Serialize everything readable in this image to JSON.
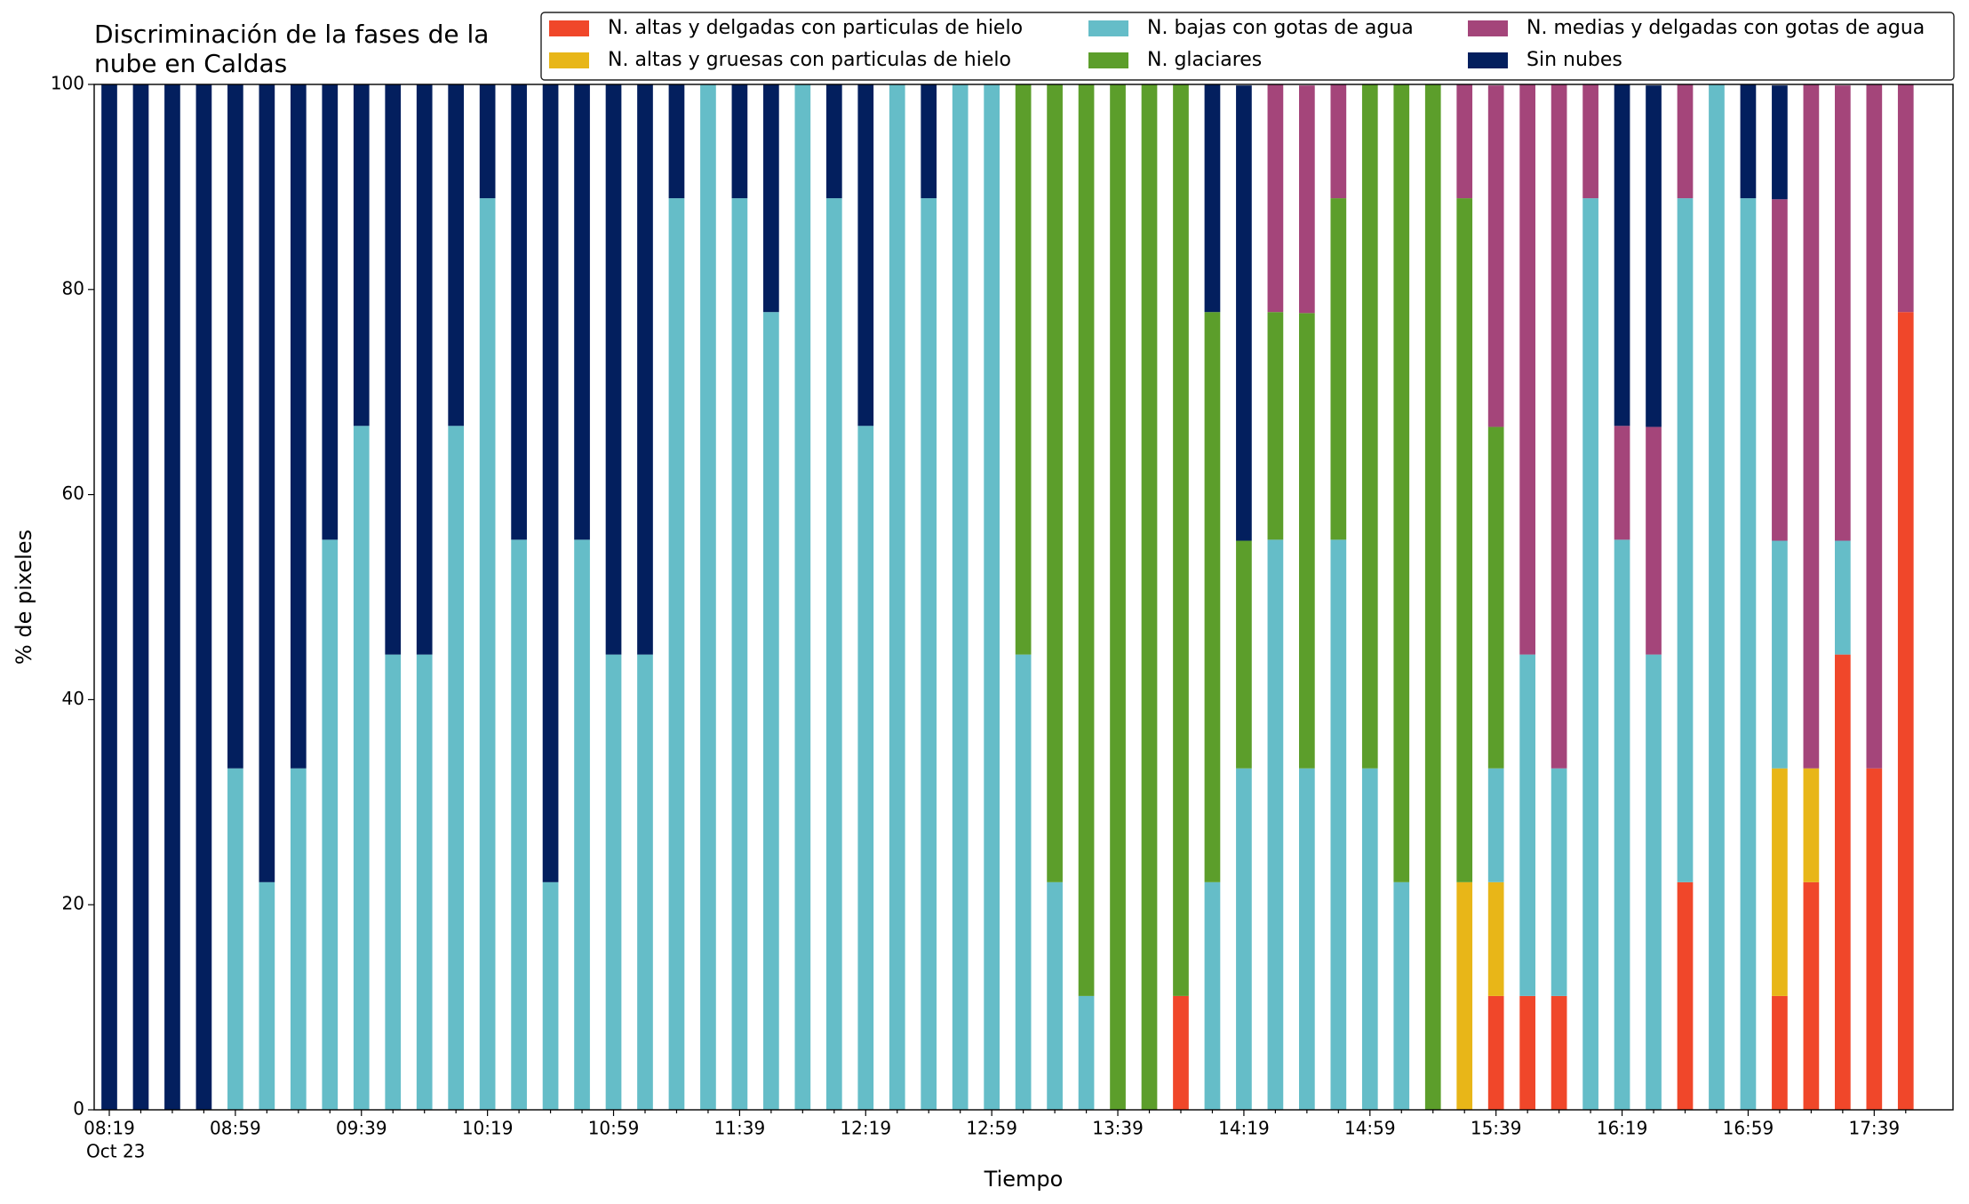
{
  "chart_data": {
    "type": "stacked_bar",
    "title": "Discriminación de la fases de la nube en Caldas",
    "xlabel": "Tiempo",
    "ylabel": "% de pixeles",
    "x_date_label": "Oct 23",
    "categories": [
      "08:19",
      null,
      null,
      null,
      "08:59",
      null,
      null,
      null,
      "09:39",
      null,
      null,
      null,
      "10:19",
      null,
      null,
      null,
      "10:59",
      null,
      null,
      null,
      "11:39",
      null,
      null,
      null,
      "12:19",
      null,
      null,
      null,
      "12:59",
      null,
      null,
      null,
      "13:39",
      null,
      null,
      null,
      "14:19",
      null,
      null,
      null,
      "14:59",
      null,
      null,
      null,
      "15:39",
      null,
      null,
      null,
      "16:19",
      null,
      null,
      null,
      "16:59",
      null,
      null,
      null,
      "17:39",
      null
    ],
    "ylim": [
      0,
      100
    ],
    "yticks": [
      0,
      20,
      40,
      60,
      80,
      100
    ],
    "legend": "upper right",
    "stacked": true,
    "series": [
      {
        "name": "N. altas y delgadas con particulas de hielo",
        "color": "#f0472a",
        "values": [
          0,
          0,
          0,
          0,
          0,
          0,
          0,
          0,
          0,
          0,
          0,
          0,
          0,
          0,
          0,
          0,
          0,
          0,
          0,
          0,
          0,
          0,
          0,
          0,
          0,
          0,
          0,
          0,
          0,
          0,
          0,
          0,
          0,
          0,
          11.1,
          0,
          0,
          0,
          0,
          0,
          0,
          0,
          0,
          0,
          11.1,
          11.1,
          11.1,
          0,
          0,
          0,
          22.2,
          0,
          0,
          11.1,
          22.2,
          44.4,
          33.3,
          77.8
        ]
      },
      {
        "name": "N. altas y gruesas con particulas de hielo",
        "color": "#e8b618",
        "values": [
          0,
          0,
          0,
          0,
          0,
          0,
          0,
          0,
          0,
          0,
          0,
          0,
          0,
          0,
          0,
          0,
          0,
          0,
          0,
          0,
          0,
          0,
          0,
          0,
          0,
          0,
          0,
          0,
          0,
          0,
          0,
          0,
          0,
          0,
          0,
          0,
          0,
          0,
          0,
          0,
          0,
          0,
          0,
          22.2,
          11.1,
          0,
          0,
          0,
          0,
          0,
          0,
          0,
          0,
          22.2,
          11.1,
          0,
          0,
          0
        ]
      },
      {
        "name": "N. bajas con gotas de agua",
        "color": "#65bdc8",
        "values": [
          0,
          0,
          0,
          0,
          33.3,
          22.2,
          33.3,
          55.6,
          66.7,
          44.4,
          44.4,
          66.7,
          88.9,
          55.6,
          22.2,
          55.6,
          44.4,
          44.4,
          88.9,
          100,
          88.9,
          77.8,
          100,
          88.9,
          66.7,
          100,
          88.9,
          100,
          100,
          44.4,
          22.2,
          11.1,
          0,
          0,
          0,
          22.2,
          33.3,
          55.6,
          33.3,
          55.6,
          33.3,
          22.2,
          0,
          0,
          11.1,
          33.3,
          22.2,
          88.9,
          55.6,
          44.4,
          66.7,
          100,
          88.9,
          22.2,
          0,
          11.1,
          0,
          0
        ]
      },
      {
        "name": "N. glaciares",
        "color": "#5c9e2b",
        "values": [
          0,
          0,
          0,
          0,
          0,
          0,
          0,
          0,
          0,
          0,
          0,
          0,
          0,
          0,
          0,
          0,
          0,
          0,
          0,
          0,
          0,
          0,
          0,
          0,
          0,
          0,
          0,
          0,
          0,
          55.6,
          77.8,
          88.9,
          100,
          100,
          88.9,
          55.6,
          22.2,
          22.2,
          44.4,
          33.3,
          66.7,
          77.8,
          100,
          66.7,
          33.3,
          0,
          0,
          0,
          0,
          0,
          0,
          0,
          0,
          0,
          0,
          0,
          0,
          0
        ]
      },
      {
        "name": "N. medias y delgadas con gotas de agua",
        "color": "#a4457a",
        "values": [
          0,
          0,
          0,
          0,
          0,
          0,
          0,
          0,
          0,
          0,
          0,
          0,
          0,
          0,
          0,
          0,
          0,
          0,
          0,
          0,
          0,
          0,
          0,
          0,
          0,
          0,
          0,
          0,
          0,
          0,
          0,
          0,
          0,
          0,
          0,
          0,
          0,
          22.2,
          22.2,
          11.1,
          0,
          0,
          0,
          11.1,
          33.3,
          55.6,
          66.7,
          11.1,
          11.1,
          22.2,
          11.1,
          0,
          0,
          33.3,
          66.7,
          44.4,
          66.7,
          22.2
        ]
      },
      {
        "name": "Sin nubes",
        "color": "#031f5e",
        "values": [
          100,
          100,
          100,
          100,
          66.7,
          77.8,
          66.7,
          44.4,
          33.3,
          55.6,
          55.6,
          33.3,
          11.1,
          44.4,
          77.8,
          44.4,
          55.6,
          55.6,
          11.1,
          0,
          11.1,
          22.2,
          0,
          11.1,
          33.3,
          0,
          11.1,
          0,
          0,
          0,
          0,
          0,
          0,
          0,
          0,
          22.2,
          44.4,
          0,
          0,
          0,
          0,
          0,
          0,
          0,
          0,
          0,
          0,
          0,
          33.3,
          33.3,
          0,
          0,
          11.1,
          11.1,
          0,
          0,
          0,
          0
        ]
      }
    ]
  }
}
